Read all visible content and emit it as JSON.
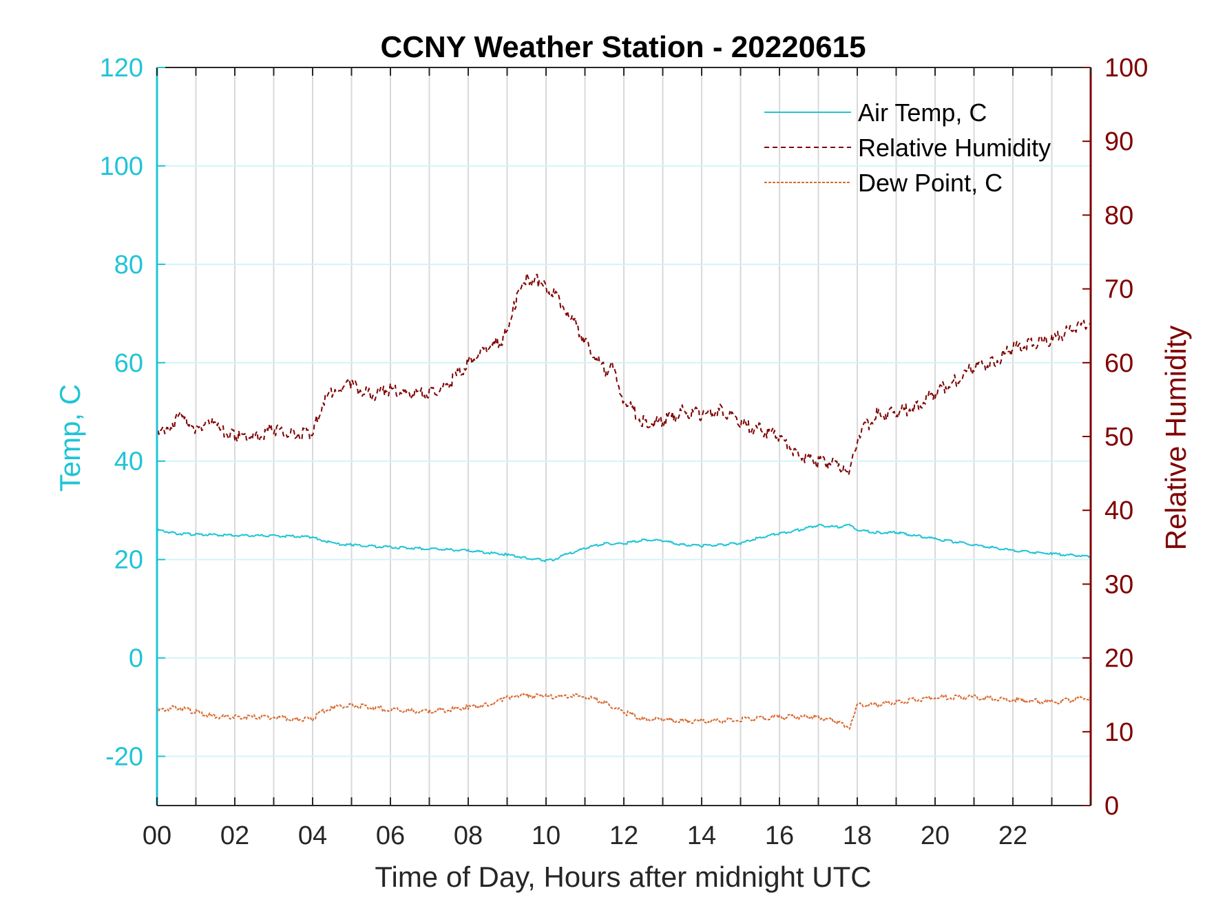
{
  "chart_data": {
    "type": "line",
    "title": "CCNY Weather Station - 20220615",
    "xlabel": "Time of Day, Hours after midnight UTC",
    "ylabel_left": "Temp, C",
    "ylabel_right": "Relative Humidity",
    "xlim": [
      0,
      24
    ],
    "ylim_left": [
      -30,
      120
    ],
    "ylim_right": [
      0,
      100
    ],
    "x_ticks": [
      0,
      2,
      4,
      6,
      8,
      10,
      12,
      14,
      16,
      18,
      20,
      22
    ],
    "x_tick_labels": [
      "00",
      "02",
      "04",
      "06",
      "08",
      "10",
      "12",
      "14",
      "16",
      "18",
      "20",
      "22"
    ],
    "y_left_ticks": [
      -20,
      0,
      20,
      40,
      60,
      80,
      100,
      120
    ],
    "y_left_tick_labels": [
      "-20",
      "0",
      "20",
      "40",
      "60",
      "80",
      "100",
      "120"
    ],
    "y_right_ticks": [
      0,
      10,
      20,
      30,
      40,
      50,
      60,
      70,
      80,
      90,
      100
    ],
    "y_right_tick_labels": [
      "0",
      "10",
      "20",
      "30",
      "40",
      "50",
      "60",
      "70",
      "80",
      "90",
      "100"
    ],
    "grid": true,
    "legend_position": "top-right",
    "colors": {
      "temp": "#1fc4d6",
      "rh": "#7f0000",
      "dew": "#d9692e",
      "grid": "#d9d9d9",
      "grid_h": "#d4f3f6"
    },
    "series": [
      {
        "name": "Air Temp, C",
        "axis": "left",
        "style": "solid",
        "x": [
          0,
          0.5,
          1,
          2,
          3,
          3.6,
          4,
          4.3,
          4.6,
          5,
          6,
          7,
          8,
          9,
          9.5,
          10,
          10.2,
          10.5,
          11,
          11.5,
          12,
          12.5,
          13,
          13.5,
          14,
          14.5,
          15,
          15.5,
          16,
          16.5,
          17,
          17.5,
          17.8,
          18,
          18.5,
          19,
          20,
          21,
          22,
          23,
          24
        ],
        "values": [
          26,
          25.3,
          25.1,
          24.9,
          24.8,
          24.7,
          24.5,
          23.8,
          23.2,
          23,
          22.5,
          22.2,
          21.8,
          21,
          20.3,
          19.8,
          20,
          21,
          22.3,
          23.3,
          23.2,
          24,
          23.8,
          23,
          22.8,
          23,
          23.3,
          24.5,
          25.3,
          26,
          27,
          26.6,
          27,
          26,
          25.5,
          25.5,
          24.2,
          23,
          21.8,
          21.2,
          20.6
        ]
      },
      {
        "name": "Relative Humidity",
        "axis": "right",
        "style": "dashed",
        "x": [
          0,
          0.3,
          0.6,
          0.9,
          1,
          1.3,
          1.6,
          2,
          2.5,
          3,
          3.5,
          4,
          4.1,
          4.3,
          4.6,
          5,
          5.5,
          6,
          6.5,
          7,
          7.5,
          8,
          8.5,
          8.9,
          9.2,
          9.5,
          9.8,
          10,
          10.2,
          10.5,
          11,
          11.5,
          11.7,
          12,
          12.5,
          13,
          13.5,
          14,
          14.5,
          15,
          15.5,
          16,
          16.5,
          17,
          17.5,
          17.8,
          18,
          18.5,
          19,
          19.5,
          20,
          20.5,
          21,
          21.5,
          22,
          22.5,
          23,
          23.5,
          24
        ],
        "values": [
          50,
          51.5,
          52.5,
          51.8,
          50.5,
          52.5,
          50.8,
          50,
          50,
          51,
          50.5,
          50.5,
          52,
          55,
          56.5,
          57,
          55.5,
          56.5,
          55.8,
          56,
          57,
          60,
          62,
          63,
          68,
          71.5,
          71,
          70,
          69.5,
          67.5,
          63,
          59,
          59.5,
          55,
          52,
          52,
          53.5,
          53,
          53.5,
          51.8,
          51,
          50,
          47.5,
          46.5,
          46.5,
          44.5,
          50,
          53,
          53.2,
          54,
          56,
          57.5,
          59.5,
          60,
          62,
          62.5,
          63,
          64.5,
          65.5
        ]
      },
      {
        "name": "Dew Point, C",
        "axis": "left",
        "style": "dotted",
        "x": [
          0,
          0.5,
          1,
          1.5,
          2,
          3,
          3.5,
          4,
          4.2,
          4.5,
          5,
          6,
          7,
          8,
          8.5,
          8.9,
          9.2,
          10,
          11,
          11.5,
          12,
          12.5,
          13,
          14,
          15,
          16,
          16.5,
          17,
          17.5,
          17.8,
          18,
          18.5,
          19,
          20,
          21,
          22,
          23,
          24
        ],
        "values": [
          -10.8,
          -10,
          -11,
          -12,
          -12,
          -12,
          -12.5,
          -12.5,
          -11,
          -10,
          -9.5,
          -10.5,
          -11,
          -10,
          -9.5,
          -8.5,
          -7.5,
          -7.8,
          -7.8,
          -9,
          -11,
          -12.5,
          -12.5,
          -13,
          -12.5,
          -12,
          -12,
          -12,
          -13,
          -14,
          -9.5,
          -9.5,
          -9,
          -8,
          -8,
          -8.5,
          -9,
          -8
        ]
      }
    ]
  }
}
